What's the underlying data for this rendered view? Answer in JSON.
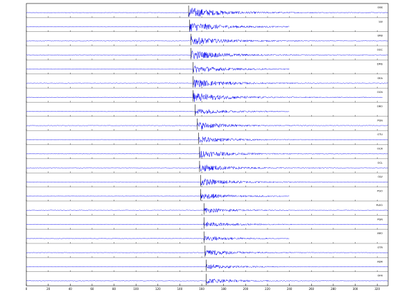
{
  "chart_data": {
    "type": "line",
    "description_free": true,
    "colors": {
      "trace": "#0000ee",
      "axis": "#000000",
      "background": "#ffffff"
    },
    "x_ticks": [
      "0",
      "20",
      "40",
      "60",
      "80",
      "100",
      "120",
      "140",
      "160",
      "180",
      "200",
      "220",
      "240",
      "260",
      "280",
      "300",
      "320"
    ],
    "xlim": [
      0,
      330
    ],
    "grid": false,
    "traces": [
      {
        "label": "OBS",
        "end": 330,
        "onset": 148,
        "amp": 1.0
      },
      {
        "label": "SSI",
        "end": 240,
        "onset": 149,
        "amp": 0.9
      },
      {
        "label": "ERB",
        "end": 330,
        "onset": 150,
        "amp": 0.8
      },
      {
        "label": "OOC",
        "end": 330,
        "onset": 150,
        "amp": 0.9
      },
      {
        "label": "DMS",
        "end": 240,
        "onset": 152,
        "amp": 0.7
      },
      {
        "label": "OEA",
        "end": 330,
        "onset": 152,
        "amp": 0.8
      },
      {
        "label": "OCN",
        "end": 325,
        "onset": 152,
        "amp": 0.9
      },
      {
        "label": "ORO",
        "end": 240,
        "onset": 154,
        "amp": 0.6
      },
      {
        "label": "PGN",
        "end": 330,
        "onset": 156,
        "amp": 0.7
      },
      {
        "label": "OTU",
        "end": 330,
        "onset": 157,
        "amp": 0.6
      },
      {
        "label": "OCR",
        "end": 330,
        "onset": 158,
        "amp": 0.7
      },
      {
        "label": "OCL",
        "end": 330,
        "onset": 158,
        "amp": 0.7
      },
      {
        "label": "OLV",
        "end": 330,
        "onset": 159,
        "amp": 0.7
      },
      {
        "label": "PGO",
        "end": 240,
        "onset": 159,
        "amp": 0.6
      },
      {
        "label": "PLEO",
        "end": 330,
        "onset": 162,
        "amp": 0.5
      },
      {
        "label": "PGN",
        "end": 330,
        "onset": 162,
        "amp": 0.5
      },
      {
        "label": "ARO",
        "end": 240,
        "onset": 162,
        "amp": 0.5
      },
      {
        "label": "OTR",
        "end": 330,
        "onset": 163,
        "amp": 0.6
      },
      {
        "label": "ADR",
        "end": 330,
        "onset": 164,
        "amp": 0.5
      },
      {
        "label": "OFR",
        "end": 330,
        "onset": 164,
        "amp": 0.5
      }
    ]
  }
}
